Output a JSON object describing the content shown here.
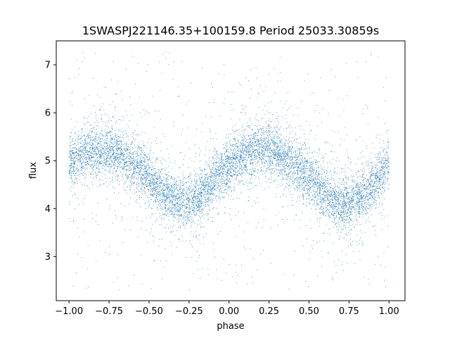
{
  "chart_data": {
    "type": "scatter",
    "title": "1SWASPJ221146.35+100159.8 Period 25033.30859s",
    "xlabel": "phase",
    "ylabel": "flux",
    "xlim": [
      -1.08,
      1.1
    ],
    "ylim": [
      2.08,
      7.5
    ],
    "xticks": [
      -1.0,
      -0.75,
      -0.5,
      -0.25,
      0.0,
      0.25,
      0.5,
      0.75,
      1.0
    ],
    "xtick_labels": [
      "−1.00",
      "−0.75",
      "−0.50",
      "−0.25",
      "0.00",
      "0.25",
      "0.50",
      "0.75",
      "1.00"
    ],
    "yticks": [
      3,
      4,
      5,
      6,
      7
    ],
    "ytick_labels": [
      "3",
      "4",
      "5",
      "6",
      "7"
    ],
    "grid": false,
    "point_color": "#1f77b4",
    "series": [
      {
        "x_range": [
          -1.0,
          1.0
        ],
        "curve": {
          "phase": [
            -1.0,
            -0.9,
            -0.8,
            -0.7,
            -0.6,
            -0.5,
            -0.4,
            -0.3,
            -0.2,
            -0.1,
            0.0,
            0.1,
            0.2,
            0.3,
            0.4,
            0.5,
            0.6,
            0.7,
            0.8,
            0.9,
            1.0
          ],
          "flux": [
            4.95,
            5.1,
            5.22,
            5.15,
            4.95,
            4.65,
            4.3,
            4.12,
            4.2,
            4.55,
            4.9,
            5.12,
            5.24,
            5.15,
            4.95,
            4.65,
            4.3,
            4.12,
            4.2,
            4.5,
            4.9
          ]
        },
        "band_width": 0.3,
        "outlier_range": [
          2.3,
          7.3
        ]
      }
    ]
  }
}
